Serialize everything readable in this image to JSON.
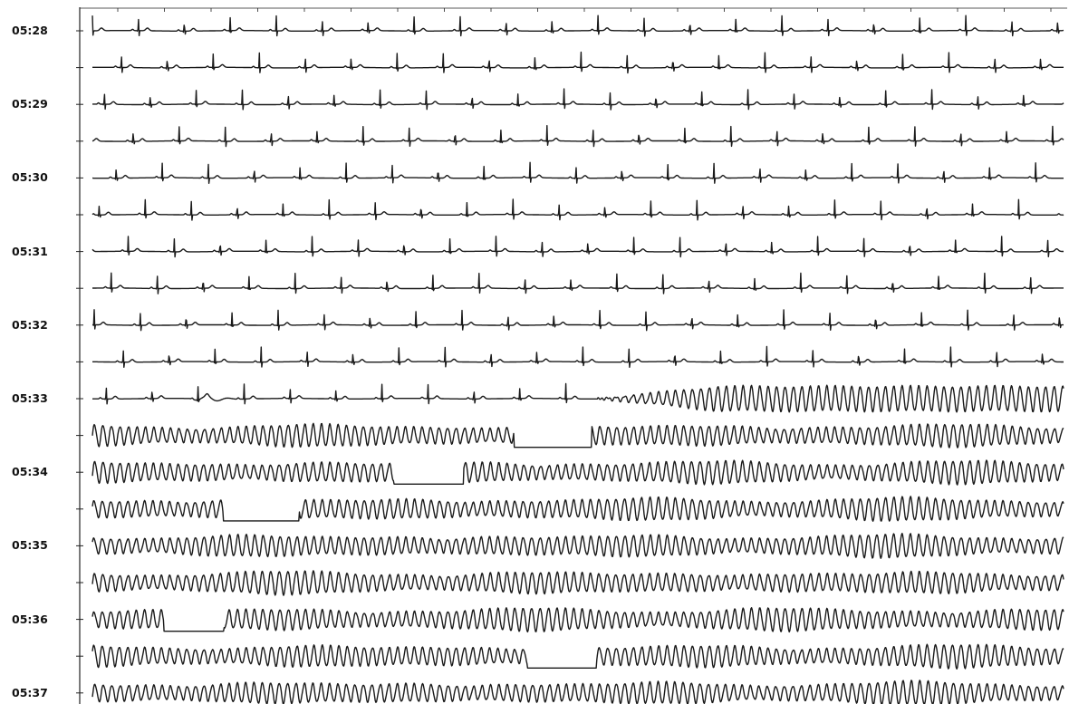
{
  "chart_data": {
    "type": "line",
    "title": "",
    "xlabel": "",
    "ylabel": "",
    "time_labels": [
      "05:28",
      "05:29",
      "05:30",
      "05:31",
      "05:32",
      "05:33",
      "05:34",
      "05:35",
      "05:36",
      "05:37"
    ],
    "strip_count": 19,
    "strip_duration_seconds": 30,
    "grid": false,
    "colors": {
      "trace": "#1a1a1a",
      "axis": "#222222",
      "label": "#111111"
    },
    "series": [
      {
        "segment": "sinus",
        "strips": [
          1,
          11
        ],
        "rhythm": "sinus rhythm",
        "rr_interval_s": 1.42
      },
      {
        "segment": "transition",
        "strip": 11,
        "onset_fraction": 0.52
      },
      {
        "segment": "ventricular",
        "strips": [
          11,
          19
        ],
        "rhythm": "polymorphic ventricular tachyarrhythmia",
        "cycle_length_s": 0.26
      }
    ]
  }
}
